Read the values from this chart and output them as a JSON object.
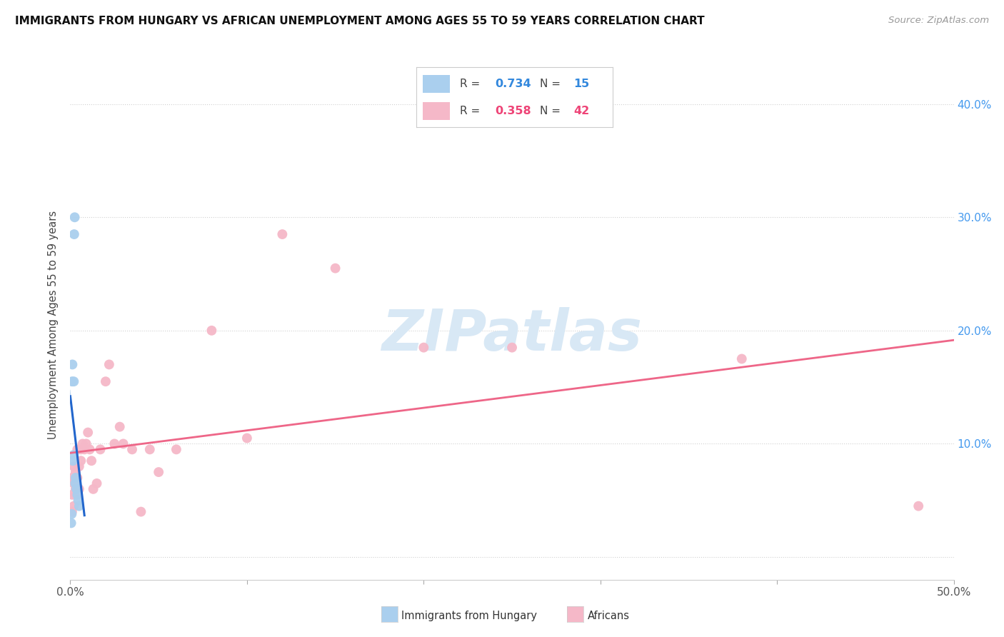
{
  "title": "IMMIGRANTS FROM HUNGARY VS AFRICAN UNEMPLOYMENT AMONG AGES 55 TO 59 YEARS CORRELATION CHART",
  "source": "Source: ZipAtlas.com",
  "ylabel": "Unemployment Among Ages 55 to 59 years",
  "xlim": [
    0.0,
    0.5
  ],
  "ylim": [
    -0.02,
    0.43
  ],
  "yticks": [
    0.0,
    0.1,
    0.2,
    0.3,
    0.4
  ],
  "ytick_labels_right": [
    "",
    "10.0%",
    "20.0%",
    "30.0%",
    "40.0%"
  ],
  "xtick_vals": [
    0.0,
    0.1,
    0.2,
    0.3,
    0.4,
    0.5
  ],
  "xtick_labels": [
    "0.0%",
    "",
    "",
    "",
    "",
    "50.0%"
  ],
  "hungary_color": "#aacfee",
  "african_color": "#f5b8c8",
  "hungary_line_color": "#2266cc",
  "african_line_color": "#ee6688",
  "hungary_dash_color": "#aaccee",
  "hungary_R": 0.734,
  "hungary_N": 15,
  "african_R": 0.358,
  "african_N": 42,
  "legend_R1_color": "#3388dd",
  "legend_R2_color": "#ee4477",
  "legend_N1_color": "#3388dd",
  "legend_N2_color": "#ee4477",
  "hungary_x": [
    0.0005,
    0.0008,
    0.001,
    0.0012,
    0.0015,
    0.0018,
    0.002,
    0.0022,
    0.0025,
    0.0028,
    0.003,
    0.0035,
    0.004,
    0.0045,
    0.005
  ],
  "hungary_y": [
    0.03,
    0.038,
    0.155,
    0.17,
    0.085,
    0.09,
    0.155,
    0.285,
    0.3,
    0.065,
    0.07,
    0.06,
    0.055,
    0.05,
    0.045
  ],
  "african_x": [
    0.001,
    0.001,
    0.001,
    0.002,
    0.002,
    0.002,
    0.003,
    0.003,
    0.003,
    0.004,
    0.004,
    0.005,
    0.005,
    0.006,
    0.006,
    0.007,
    0.008,
    0.009,
    0.01,
    0.011,
    0.012,
    0.013,
    0.015,
    0.017,
    0.02,
    0.022,
    0.025,
    0.028,
    0.03,
    0.035,
    0.04,
    0.045,
    0.05,
    0.06,
    0.08,
    0.1,
    0.12,
    0.15,
    0.2,
    0.25,
    0.38,
    0.48
  ],
  "african_y": [
    0.055,
    0.07,
    0.04,
    0.065,
    0.08,
    0.045,
    0.06,
    0.075,
    0.055,
    0.07,
    0.095,
    0.08,
    0.06,
    0.085,
    0.095,
    0.1,
    0.095,
    0.1,
    0.11,
    0.095,
    0.085,
    0.06,
    0.065,
    0.095,
    0.155,
    0.17,
    0.1,
    0.115,
    0.1,
    0.095,
    0.04,
    0.095,
    0.075,
    0.095,
    0.2,
    0.105,
    0.285,
    0.255,
    0.185,
    0.185,
    0.175,
    0.045
  ],
  "watermark_text": "ZIPatlas",
  "watermark_color": "#d8e8f5",
  "watermark_fontsize": 58,
  "background_color": "#ffffff"
}
